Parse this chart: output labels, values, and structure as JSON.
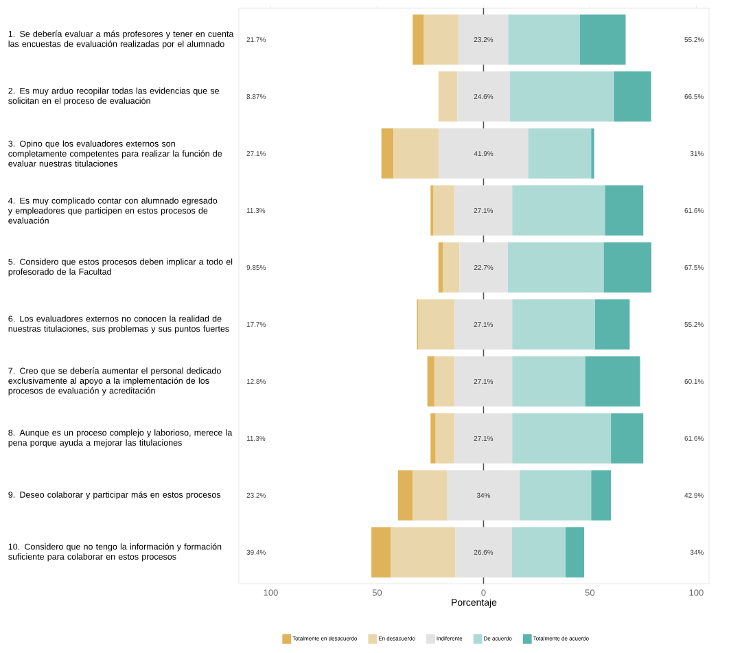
{
  "chart_data": {
    "type": "bar",
    "orientation": "horizontal",
    "xlabel": "Porcentaje",
    "categories": [
      "1. Se debería evaluar a más profesores y tener en cuenta las encuestas de evaluación realizadas por el alumnado",
      "2. Es muy arduo recopilar todas las evidencias que se solicitan en el proceso de evaluación",
      "3. Opino que los evaluadores externos son completamente competentes para realizar la función de evaluar nuestras titulaciones",
      "4. Es muy complicado contar con alumnado egresado y empleadores que participen en estos procesos de evaluación",
      "5. Considero que estos procesos deben implicar a todo el profesorado de la Facultad",
      "6. Los evaluadores externos no conocen la realidad de nuestras titulaciones, sus problemas y sus puntos fuertes",
      "7. Creo que se debería aumentar el personal dedicado exclusivamente al apoyo a la implementación de los procesos de evaluación y acreditación",
      "8. Aunque es un proceso complejo y laborioso, merece la pena porque ayuda a mejorar las titulaciones",
      "9. Deseo colaborar y participar más en estos procesos",
      "10. Considero que no tengo la información y formación suficiente para colaborar en estos procesos"
    ],
    "series": [
      {
        "name": "Totalmente en desacuerdo",
        "color": "#dfb35a",
        "base": [
          -33.3,
          null,
          -48.0,
          -24.9,
          -21.2,
          -31.3,
          -26.4,
          -24.9,
          -40.2,
          -52.7
        ],
        "values": [
          5.3,
          null,
          5.7,
          1.4,
          2.2,
          0.7,
          3.3,
          2.4,
          6.8,
          9.1
        ]
      },
      {
        "name": "En desacuerdo",
        "color": "#ead6ab",
        "base": [
          -28.0,
          -21.2,
          -42.3,
          -23.5,
          -19.0,
          -30.6,
          -23.1,
          -22.5,
          -33.4,
          -43.6
        ],
        "values": [
          16.4,
          8.9,
          21.4,
          9.9,
          7.7,
          17.0,
          9.5,
          8.9,
          16.4,
          30.3
        ]
      },
      {
        "name": "Indiferente",
        "color": "#e3e3e3",
        "base": [
          -11.6,
          -12.3,
          -20.9,
          -13.6,
          -11.3,
          -13.6,
          -13.6,
          -13.6,
          -17.0,
          -13.3
        ],
        "values": [
          23.2,
          24.6,
          41.9,
          27.1,
          22.7,
          27.1,
          27.1,
          27.1,
          34,
          26.6
        ],
        "value_labels": [
          "23.2%",
          "24.6%",
          "41.9%",
          "27.1%",
          "22.7%",
          "27.1%",
          "27.1%",
          "27.1%",
          "34%",
          "26.6%"
        ]
      },
      {
        "name": "De acuerdo",
        "color": "#aedad5",
        "base": [
          11.6,
          12.3,
          21.0,
          13.5,
          11.4,
          13.5,
          13.5,
          13.5,
          17.0,
          13.3
        ],
        "values": [
          33.7,
          49.0,
          29.6,
          43.6,
          45.1,
          38.9,
          34.3,
          46.4,
          33.6,
          25.3
        ]
      },
      {
        "name": "Totalmente de acuerdo",
        "color": "#5ab4ac",
        "base": [
          45.3,
          61.3,
          50.6,
          57.1,
          56.5,
          52.4,
          47.8,
          59.9,
          50.6,
          38.6
        ],
        "values": [
          21.5,
          17.5,
          1.4,
          18.0,
          22.4,
          16.3,
          25.8,
          15.2,
          9.3,
          8.7
        ]
      }
    ],
    "annotations": [
      "21.7%",
      "8.87%",
      "27.1%",
      "11.3%",
      "9.85%",
      "17.7%",
      "12.8%",
      "11.3%",
      "23.2%",
      "39.4%",
      "55.2%",
      "66.5%",
      "31%",
      "61.6%",
      "67.5%",
      "55.2%",
      "60.1%",
      "61.6%",
      "42.9%",
      "34%"
    ],
    "xlim": [
      -115,
      106
    ],
    "xticks": [
      {
        "value": -100,
        "label": "100"
      },
      {
        "value": -50,
        "label": "50"
      },
      0,
      50,
      100
    ],
    "ref_lines": [
      {
        "axis": "x",
        "value": 0,
        "color": "#555555"
      }
    ],
    "legend": "bottom"
  }
}
